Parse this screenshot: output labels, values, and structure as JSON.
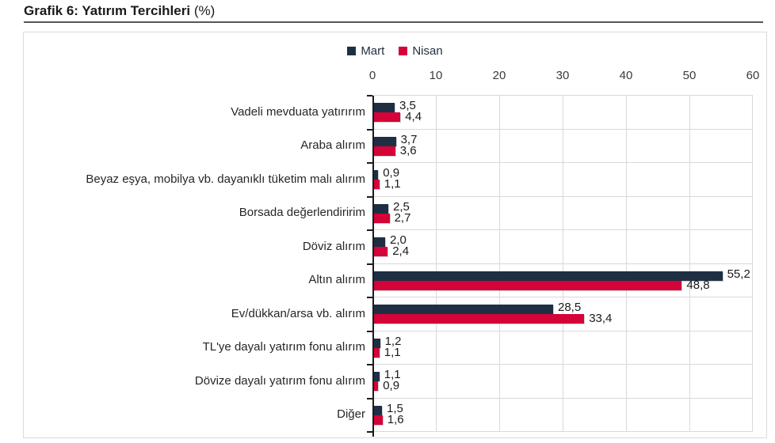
{
  "header": {
    "title": "Grafik 6: Yatırım Tercihleri",
    "title_suffix": "(%)"
  },
  "colors": {
    "mart": "#1e2f44",
    "nisan": "#d40338",
    "gridline": "#d9d9d9",
    "axis": "#1c1c1c"
  },
  "chart_data": {
    "type": "bar",
    "orientation": "horizontal",
    "title": "Grafik 6: Yatırım Tercihleri (%)",
    "categories": [
      "Vadeli mevduata yatırırım",
      "Araba alırım",
      "Beyaz eşya, mobilya vb. dayanıklı tüketim malı alırım",
      "Borsada değerlendiririm",
      "Döviz alırım",
      "Altın alırım",
      "Ev/dükkan/arsa vb. alırım",
      "TL'ye dayalı yatırım fonu alırım",
      "Dövize dayalı yatırım fonu alırım",
      "Diğer"
    ],
    "series": [
      {
        "name": "Mart",
        "color": "#1e2f44",
        "values": [
          3.5,
          3.7,
          0.9,
          2.5,
          2.0,
          55.2,
          28.5,
          1.2,
          1.1,
          1.5
        ]
      },
      {
        "name": "Nisan",
        "color": "#d40338",
        "values": [
          4.4,
          3.6,
          1.1,
          2.7,
          2.4,
          48.8,
          33.4,
          1.1,
          0.9,
          1.6
        ]
      }
    ],
    "xlim": [
      0,
      60
    ],
    "xticks": [
      0,
      10,
      20,
      30,
      40,
      50,
      60
    ],
    "decimal_separator": ",",
    "legend_position": "top",
    "grid": true
  }
}
